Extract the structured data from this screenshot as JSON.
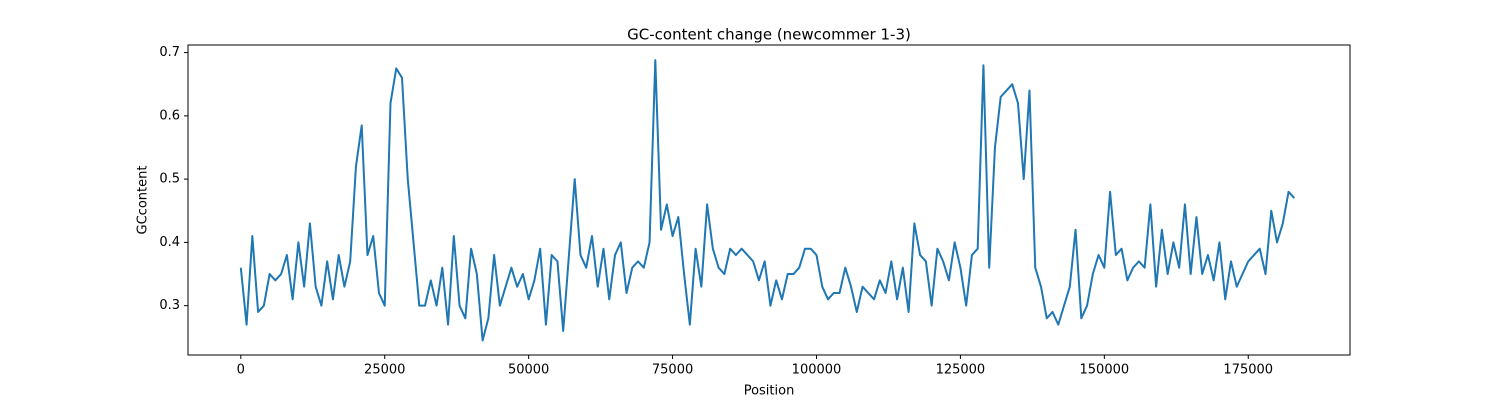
{
  "chart_data": {
    "type": "line",
    "title": "GC-content change (newcommer 1-3)",
    "x_label": "Position",
    "y_label": "GCcontent",
    "color": "#1f77b4",
    "x": [
      0,
      1000,
      2000,
      3000,
      4000,
      5000,
      6000,
      7000,
      8000,
      9000,
      10000,
      11000,
      12000,
      13000,
      14000,
      15000,
      16000,
      17000,
      18000,
      19000,
      20000,
      21000,
      22000,
      23000,
      24000,
      25000,
      26000,
      27000,
      28000,
      29000,
      30000,
      31000,
      32000,
      33000,
      34000,
      35000,
      36000,
      37000,
      38000,
      39000,
      40000,
      41000,
      42000,
      43000,
      44000,
      45000,
      46000,
      47000,
      48000,
      49000,
      50000,
      51000,
      52000,
      53000,
      54000,
      55000,
      56000,
      57000,
      58000,
      59000,
      60000,
      61000,
      62000,
      63000,
      64000,
      65000,
      66000,
      67000,
      68000,
      69000,
      70000,
      71000,
      72000,
      73000,
      74000,
      75000,
      76000,
      77000,
      78000,
      79000,
      80000,
      81000,
      82000,
      83000,
      84000,
      85000,
      86000,
      87000,
      88000,
      89000,
      90000,
      91000,
      92000,
      93000,
      94000,
      95000,
      96000,
      97000,
      98000,
      99000,
      100000,
      101000,
      102000,
      103000,
      104000,
      105000,
      106000,
      107000,
      108000,
      109000,
      110000,
      111000,
      112000,
      113000,
      114000,
      115000,
      116000,
      117000,
      118000,
      119000,
      120000,
      121000,
      122000,
      123000,
      124000,
      125000,
      126000,
      127000,
      128000,
      129000,
      130000,
      131000,
      132000,
      133000,
      134000,
      135000,
      136000,
      137000,
      138000,
      139000,
      140000,
      141000,
      142000,
      143000,
      144000,
      145000,
      146000,
      147000,
      148000,
      149000,
      150000,
      151000,
      152000,
      153000,
      154000,
      155000,
      156000,
      157000,
      158000,
      159000,
      160000,
      161000,
      162000,
      163000,
      164000,
      165000,
      166000,
      167000,
      168000,
      169000,
      170000,
      171000,
      172000,
      173000,
      174000,
      175000,
      176000,
      177000,
      178000,
      179000,
      180000,
      181000,
      182000,
      183000
    ],
    "values": [
      0.36,
      0.27,
      0.41,
      0.29,
      0.3,
      0.35,
      0.34,
      0.35,
      0.38,
      0.31,
      0.4,
      0.33,
      0.43,
      0.33,
      0.3,
      0.37,
      0.31,
      0.38,
      0.33,
      0.37,
      0.52,
      0.585,
      0.38,
      0.41,
      0.32,
      0.3,
      0.62,
      0.675,
      0.66,
      0.5,
      0.4,
      0.3,
      0.3,
      0.34,
      0.3,
      0.36,
      0.27,
      0.41,
      0.3,
      0.28,
      0.39,
      0.35,
      0.245,
      0.28,
      0.38,
      0.3,
      0.33,
      0.36,
      0.33,
      0.35,
      0.31,
      0.34,
      0.39,
      0.27,
      0.38,
      0.37,
      0.26,
      0.38,
      0.5,
      0.38,
      0.36,
      0.41,
      0.33,
      0.39,
      0.31,
      0.38,
      0.4,
      0.32,
      0.36,
      0.37,
      0.36,
      0.4,
      0.688,
      0.42,
      0.46,
      0.41,
      0.44,
      0.35,
      0.27,
      0.39,
      0.33,
      0.46,
      0.39,
      0.36,
      0.35,
      0.39,
      0.38,
      0.39,
      0.38,
      0.37,
      0.34,
      0.37,
      0.3,
      0.34,
      0.31,
      0.35,
      0.35,
      0.36,
      0.39,
      0.39,
      0.38,
      0.33,
      0.31,
      0.32,
      0.32,
      0.36,
      0.33,
      0.29,
      0.33,
      0.32,
      0.31,
      0.34,
      0.32,
      0.37,
      0.31,
      0.36,
      0.29,
      0.43,
      0.38,
      0.37,
      0.3,
      0.39,
      0.37,
      0.34,
      0.4,
      0.36,
      0.3,
      0.38,
      0.39,
      0.68,
      0.36,
      0.55,
      0.63,
      0.64,
      0.65,
      0.62,
      0.5,
      0.64,
      0.36,
      0.33,
      0.28,
      0.29,
      0.27,
      0.3,
      0.33,
      0.42,
      0.28,
      0.3,
      0.35,
      0.38,
      0.36,
      0.48,
      0.38,
      0.39,
      0.34,
      0.36,
      0.37,
      0.36,
      0.46,
      0.33,
      0.42,
      0.35,
      0.4,
      0.36,
      0.46,
      0.35,
      0.44,
      0.35,
      0.38,
      0.34,
      0.4,
      0.31,
      0.37,
      0.33,
      0.35,
      0.37,
      0.38,
      0.39,
      0.35,
      0.45,
      0.4,
      0.43,
      0.48,
      0.47
    ],
    "xlim": [
      -9175,
      192675
    ],
    "ylim": [
      0.222,
      0.712
    ],
    "xticks": [
      0,
      25000,
      50000,
      75000,
      100000,
      125000,
      150000,
      175000
    ],
    "yticks": [
      0.3,
      0.4,
      0.5,
      0.6,
      0.7
    ]
  }
}
